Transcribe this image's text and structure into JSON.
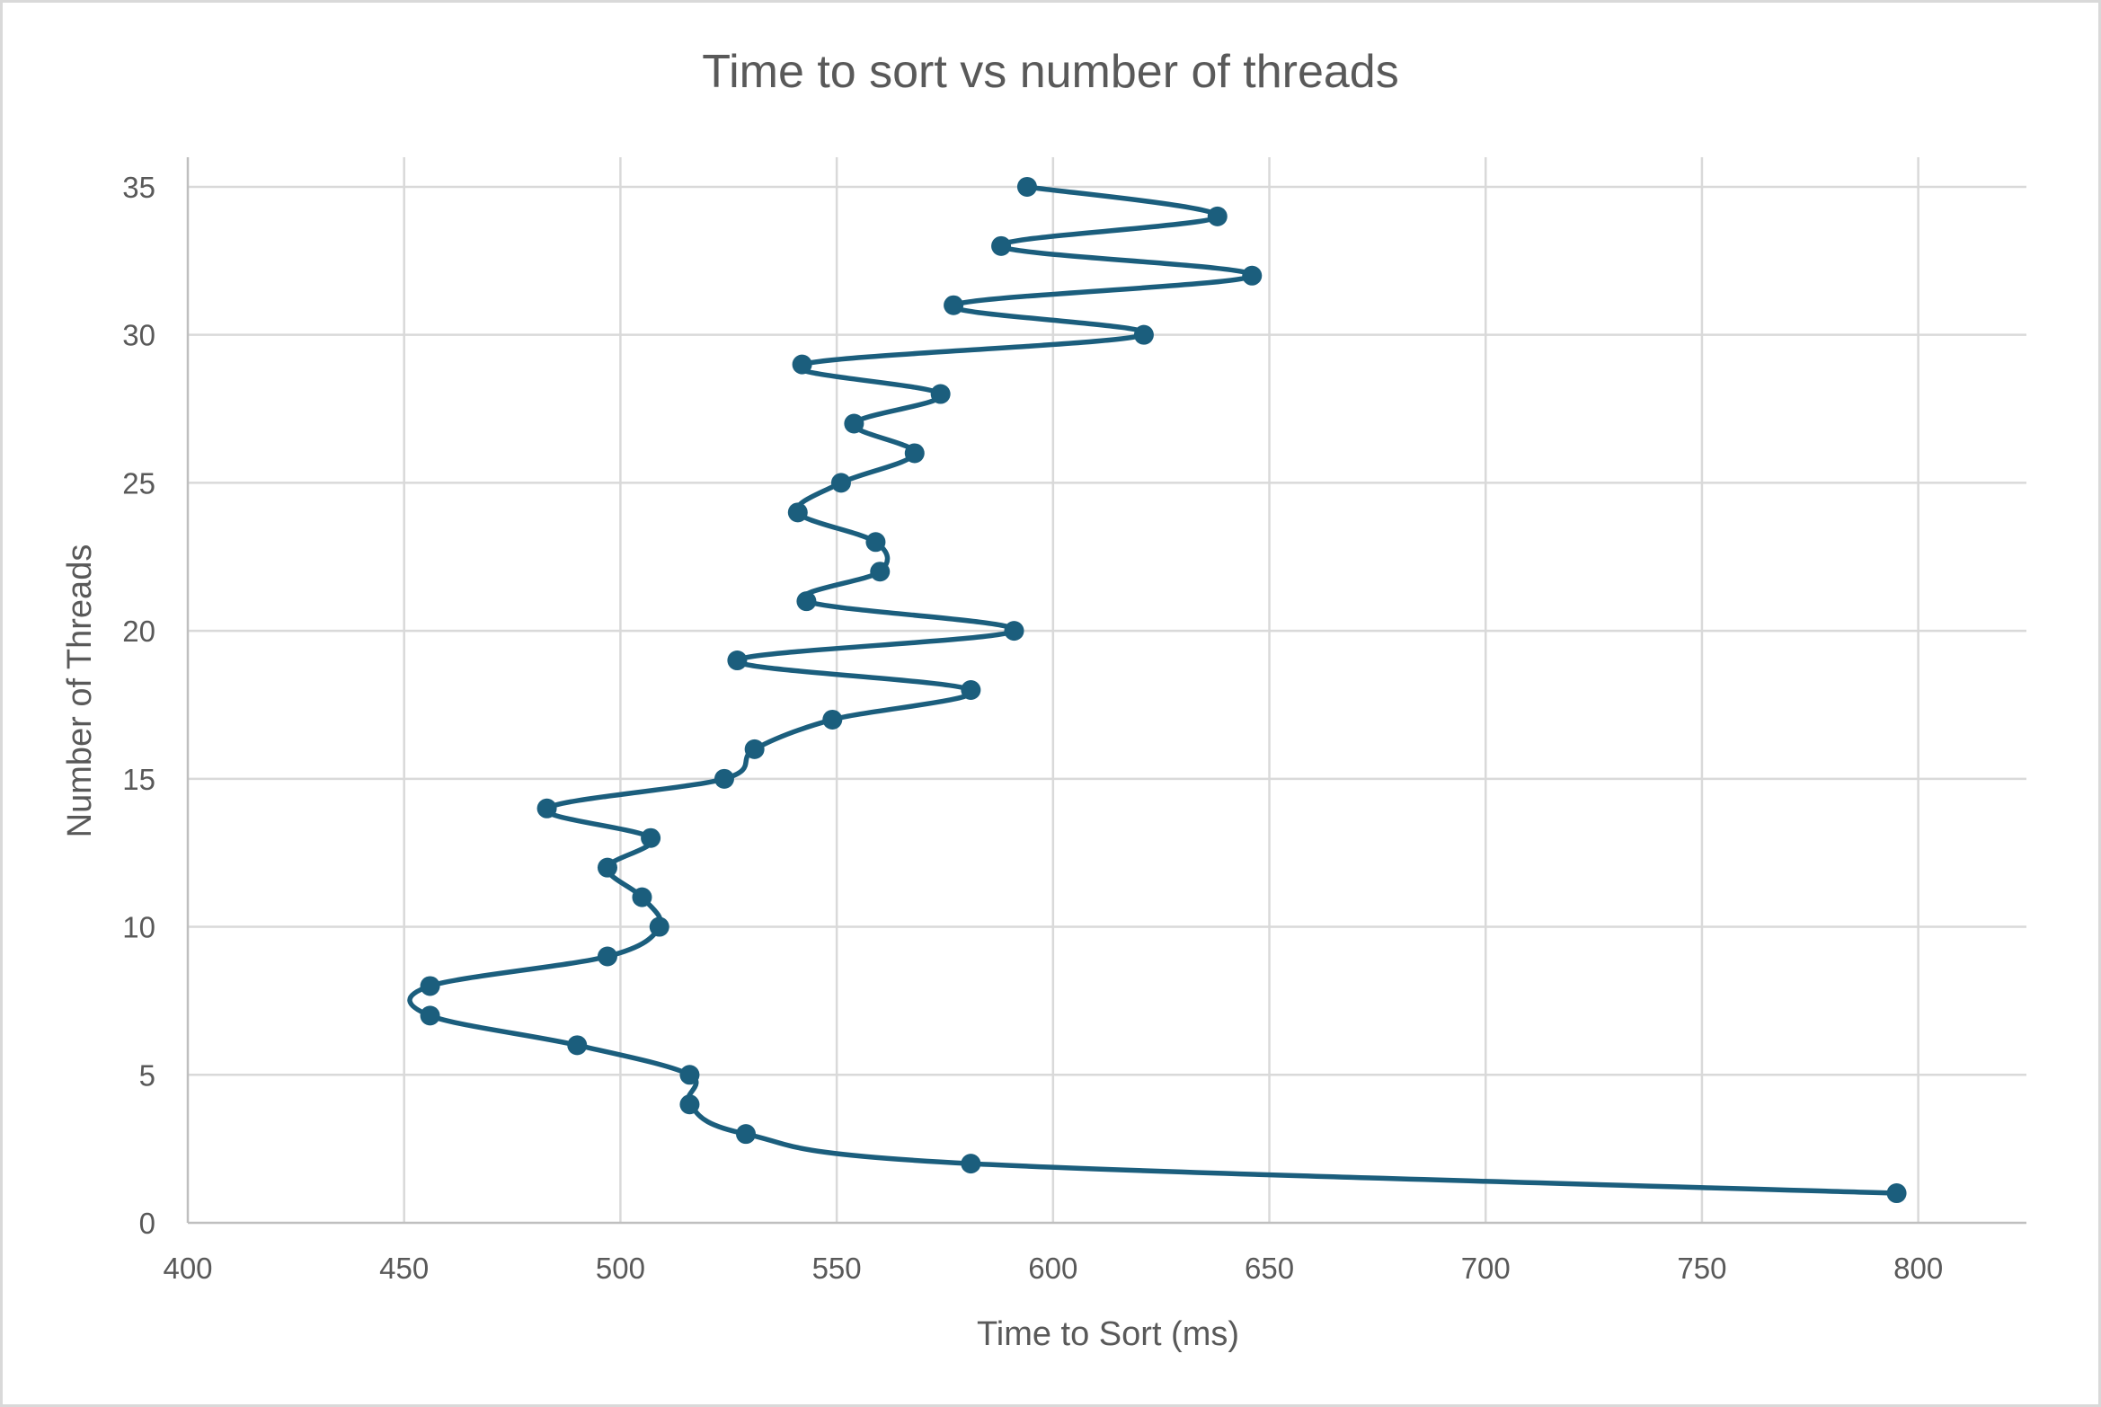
{
  "chart_data": {
    "type": "scatter",
    "title": "Time to sort vs number of threads",
    "xlabel": "Time to Sort (ms)",
    "ylabel": "Number of Threads",
    "xlim": [
      400,
      825
    ],
    "ylim": [
      0,
      36
    ],
    "xticks": [
      400,
      450,
      500,
      550,
      600,
      650,
      700,
      750,
      800
    ],
    "yticks": [
      0,
      5,
      10,
      15,
      20,
      25,
      30,
      35
    ],
    "grid": true,
    "legend": "none",
    "line_style": "smooth",
    "series_color": "#1b5e7d",
    "series": [
      {
        "x": [
          795,
          581,
          529,
          516,
          516,
          490,
          456,
          456,
          497,
          509,
          505,
          497,
          507,
          483,
          524,
          531,
          549,
          581,
          527,
          591,
          543,
          560,
          559,
          541,
          551,
          568,
          554,
          574,
          542,
          621,
          577,
          646,
          588,
          638,
          594
        ],
        "y": [
          1,
          2,
          3,
          4,
          5,
          6,
          7,
          8,
          9,
          10,
          11,
          12,
          13,
          14,
          15,
          16,
          17,
          18,
          19,
          20,
          21,
          22,
          23,
          24,
          25,
          26,
          27,
          28,
          29,
          30,
          31,
          32,
          33,
          34,
          35
        ]
      }
    ]
  }
}
